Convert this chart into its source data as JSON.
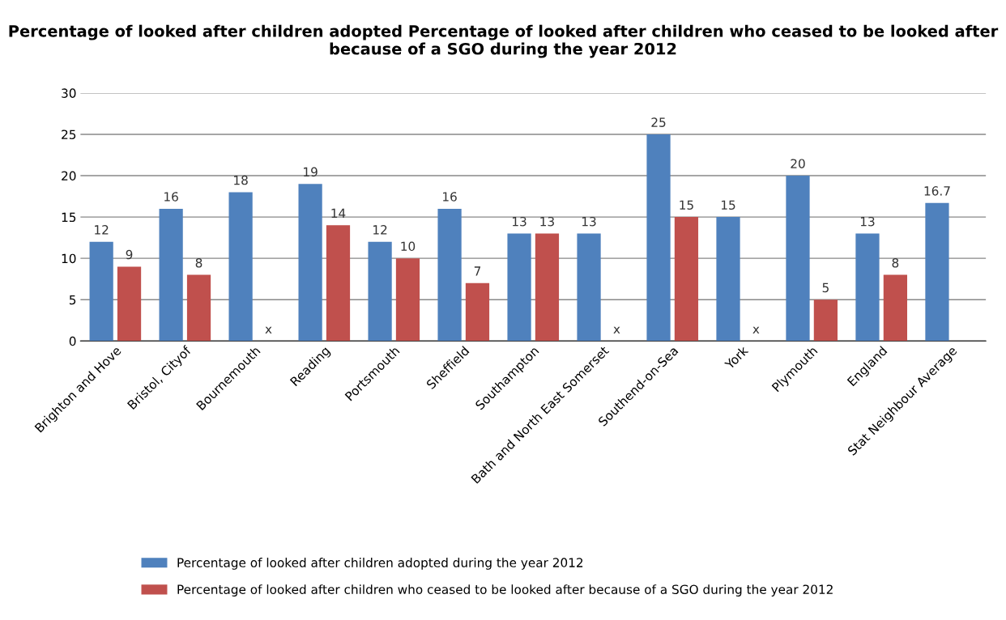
{
  "chart_data": {
    "type": "bar",
    "title": "Percentage of looked after children adopted Percentage of looked after children who ceased to be looked after because of a SGO during the year 2012",
    "categories": [
      "Brighton and Hove",
      "Bristol, Cityof",
      "Bournemouth",
      "Reading",
      "Portsmouth",
      "Sheffield",
      "Southampton",
      "Bath and North East Somerset",
      "Southend-on-Sea",
      "York",
      "Plymouth",
      "England",
      "Stat Neighbour Average"
    ],
    "series": [
      {
        "name": "Percentage of looked after children adopted during the year 2012",
        "color": "#4f81bd",
        "values": [
          12,
          16,
          18,
          19,
          12,
          16,
          13,
          13,
          25,
          15,
          20,
          13,
          16.7
        ],
        "value_labels": [
          "12",
          "16",
          "18",
          "19",
          "12",
          "16",
          "13",
          "13",
          "25",
          "15",
          "20",
          "13",
          "16.7"
        ]
      },
      {
        "name": "Percentage of looked after children who ceased to be looked after because of a SGO during the year 2012",
        "color": "#c0504d",
        "values": [
          9,
          8,
          null,
          14,
          10,
          7,
          13,
          null,
          15,
          null,
          5,
          8,
          null
        ],
        "value_labels": [
          "9",
          "8",
          "x",
          "14",
          "10",
          "7",
          "13",
          "x",
          "15",
          "x",
          "5",
          "8",
          null
        ]
      }
    ],
    "ylim": [
      0,
      30
    ],
    "yticks": [
      0,
      5,
      10,
      15,
      20,
      25,
      30
    ],
    "grid": "y",
    "legend": "bottom"
  }
}
